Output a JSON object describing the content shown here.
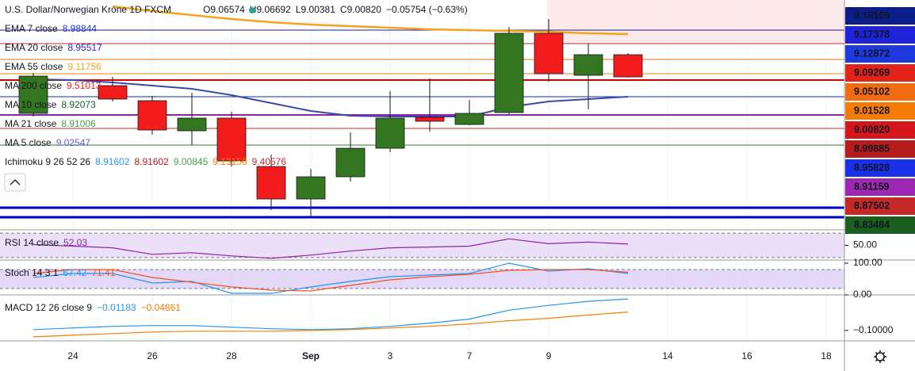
{
  "chart_data": [
    {
      "type": "candlestick",
      "title": "U.S. Dollar/Norwegian Krone  1D  FXCM",
      "ohlc": [
        "O9.06574",
        "H9.06692",
        "L9.00381",
        "C9.00820",
        "−0.05754 (−0.63%)"
      ],
      "legend": [
        {
          "name": "EMA 7 close",
          "value": "8.98844",
          "color": "#1e3adf"
        },
        {
          "name": "EMA 20 close",
          "value": "8.95517",
          "color": "#2a2ad0"
        },
        {
          "name": "EMA 55 close",
          "value": "9.11756",
          "color": "#f7a21b"
        },
        {
          "name": "MA 200 close",
          "value": "9.51013",
          "color": "#e2231a"
        },
        {
          "name": "MA 10 close",
          "value": "8.92073",
          "color": "#1b5e20"
        },
        {
          "name": "MA 21 close",
          "value": "8.91006",
          "color": "#43a047"
        },
        {
          "name": "MA 5 close",
          "value": "9.02547",
          "color": "#5c5cd6"
        }
      ],
      "ichimoku": {
        "name": "Ichimoku 9 26 52 26",
        "values": [
          {
            "value": "8.91602",
            "color": "#2196f3"
          },
          {
            "value": "8.91602",
            "color": "#b71c1c"
          },
          {
            "value": "9.00845",
            "color": "#43a047"
          },
          {
            "value": "9.13156",
            "color": "#f57c00"
          },
          {
            "value": "9.40576",
            "color": "#c62828"
          }
        ]
      },
      "categories": [
        null,
        "24",
        null,
        "26",
        null,
        "28",
        null,
        "Sep",
        null,
        "3",
        null,
        "7",
        null,
        "9",
        null,
        null,
        "14",
        null,
        "16",
        null,
        "18"
      ],
      "open": [
        9.01954,
        null,
        9.06571,
        9.04064,
        8.99051,
        9.01162,
        8.93115,
        8.87706,
        8.914,
        8.96149,
        9.01294,
        9.00107,
        9.02086,
        9.15278,
        9.08286,
        9.11716,
        null,
        null,
        null,
        null,
        null
      ],
      "high": [
        9.08682,
        null,
        9.08022,
        9.04856,
        9.05384,
        9.02217,
        8.95093,
        8.92719,
        8.98787,
        9.05648,
        9.07758,
        9.04196,
        9.16334,
        9.17653,
        9.13563,
        9.1198,
        null,
        null,
        null,
        null,
        null
      ],
      "low": [
        9.01426,
        null,
        9.03933,
        8.98392,
        8.96677,
        8.93115,
        8.85859,
        8.84539,
        8.90608,
        8.95489,
        8.98919,
        8.99975,
        9.01822,
        9.07231,
        9.02613,
        9.0789,
        null,
        null,
        null,
        null,
        null
      ],
      "close": [
        9.08154,
        null,
        9.04328,
        8.99183,
        9.01162,
        8.94038,
        8.87706,
        8.914,
        8.96149,
        9.01162,
        9.00634,
        9.01954,
        9.15278,
        9.0855,
        9.11716,
        9.08022,
        null,
        null,
        null,
        null,
        null
      ],
      "up_color": "#33761f",
      "down_color": "#f21c1c",
      "overlays": [
        {
          "color": "#f7a21b",
          "values": [
            null,
            null,
            9.19764,
            9.18972,
            9.18312,
            9.17653,
            9.17125,
            9.16729,
            9.16466,
            9.16202,
            9.15938,
            9.15806,
            9.15674,
            9.15542,
            9.15278,
            9.15146,
            null,
            null,
            null,
            null,
            null
          ]
        },
        {
          "color": "#3949ab",
          "values": [
            9.07626,
            9.07495,
            9.07099,
            9.06571,
            9.06043,
            9.04988,
            9.03669,
            9.02349,
            9.01558,
            9.01426,
            9.01426,
            9.01426,
            9.03009,
            9.03933,
            9.04328,
            9.04724,
            null,
            null,
            null,
            null,
            null
          ]
        }
      ],
      "levels": [
        {
          "value": 9.15806,
          "color": "#1a1aa0",
          "width": 1
        },
        {
          "value": 9.13563,
          "color": "#c62828",
          "width": 1
        },
        {
          "value": 9.10925,
          "color": "#ef6c00",
          "width": 1
        },
        {
          "value": 9.0855,
          "color": "#f57c00",
          "width": 1
        },
        {
          "value": 9.07495,
          "color": "#d50000",
          "width": 2
        },
        {
          "value": 9.04724,
          "color": "#0d2ea0",
          "width": 1
        },
        {
          "value": 9.0169,
          "color": "#8e24aa",
          "width": 2
        },
        {
          "value": 8.99447,
          "color": "#c62828",
          "width": 1
        },
        {
          "value": 8.96677,
          "color": "#2e7d32",
          "width": 1
        },
        {
          "value": 8.86254,
          "color": "#0000c8",
          "width": 3
        },
        {
          "value": 8.84671,
          "color": "#0000c8",
          "width": 3
        }
      ],
      "price_labels": [
        {
          "label": "9.18169",
          "color": "#0b1d8a"
        },
        {
          "label": "9.17378",
          "color": "#1e22d8"
        },
        {
          "label": "9.12872",
          "color": "#1e3adf"
        },
        {
          "label": "9.09269",
          "color": "#e2231a"
        },
        {
          "label": "9.05102",
          "color": "#f26b10"
        },
        {
          "label": "9.01528",
          "color": "#f57c00"
        },
        {
          "label": "9.00820",
          "color": "#d4161c"
        },
        {
          "label": "8.99885",
          "color": "#b71c1c"
        },
        {
          "label": "8.95828",
          "color": "#1a30e6"
        },
        {
          "label": "8.91159",
          "color": "#9c27b0"
        },
        {
          "label": "8.87502",
          "color": "#c62828"
        },
        {
          "label": "8.83484",
          "color": "#1b5e20"
        }
      ],
      "ylim": [
        8.82561,
        9.20819
      ]
    },
    {
      "type": "line",
      "label": "RSI 14 close",
      "value_text": "52.03",
      "value_color": "#8e24aa",
      "band": [
        30,
        70
      ],
      "band_color": "#e3d3f5",
      "ylim": [
        26,
        75.3
      ],
      "yticks": [
        {
          "value": 50,
          "label": "50.00"
        }
      ],
      "series": [
        {
          "color": "#8e24aa",
          "values": [
            51.3,
            48.7,
            46,
            35.3,
            38,
            32.7,
            28.7,
            34,
            40.7,
            46,
            47.3,
            48.7,
            60.7,
            52.7,
            55.3,
            52.03,
            null,
            null,
            null,
            null,
            null
          ]
        }
      ]
    },
    {
      "type": "line",
      "label": "Stoch 14 3 1",
      "value_text": [
        "67.42",
        "71.41"
      ],
      "value_color": [
        "#2196f3",
        "#f4511e"
      ],
      "band": [
        20,
        80
      ],
      "band_color": "#d9c7f5",
      "ylim": [
        0,
        110
      ],
      "yticks": [
        {
          "value": 100,
          "label": "100.00"
        },
        {
          "value": 0,
          "label": "0.00"
        }
      ],
      "series": [
        {
          "color": "#2196f3",
          "values": [
            55,
            67.5,
            67.5,
            37.5,
            42.5,
            5,
            5,
            25,
            42.5,
            57.5,
            62.5,
            67.5,
            100,
            75,
            82.5,
            67.42,
            null,
            null,
            null,
            null,
            null
          ]
        },
        {
          "color": "#f4511e",
          "values": [
            67.5,
            80,
            80,
            55,
            40,
            25,
            15,
            12.5,
            30,
            47.5,
            57.5,
            65,
            77.5,
            80,
            80,
            71.41,
            null,
            null,
            null,
            null,
            null
          ]
        }
      ]
    },
    {
      "type": "line",
      "label": "MACD 12 26 close 9",
      "value_text": [
        "−0.01183",
        "−0.04861"
      ],
      "value_color": [
        "#2196f3",
        "#f57c00"
      ],
      "ylim": [
        -0.12938,
        -0.00056
      ],
      "yticks": [
        {
          "value": -0.1,
          "label": "−0.10000"
        }
      ],
      "series": [
        {
          "color": "#2196f3",
          "values": [
            -0.09774,
            -0.09322,
            -0.0887,
            -0.08644,
            -0.08644,
            -0.09096,
            -0.09548,
            -0.09774,
            -0.09548,
            -0.0887,
            -0.07966,
            -0.06836,
            -0.0435,
            -0.02994,
            -0.01864,
            -0.01183,
            null,
            null,
            null,
            null,
            null
          ]
        },
        {
          "color": "#f57c00",
          "values": [
            -0.11808,
            -0.11356,
            -0.10904,
            -0.10452,
            -0.10226,
            -0.10226,
            -0.10226,
            -0.1,
            -0.09774,
            -0.09322,
            -0.0887,
            -0.08192,
            -0.07288,
            -0.0661,
            -0.05706,
            -0.04861,
            null,
            null,
            null,
            null,
            null
          ]
        }
      ]
    }
  ]
}
